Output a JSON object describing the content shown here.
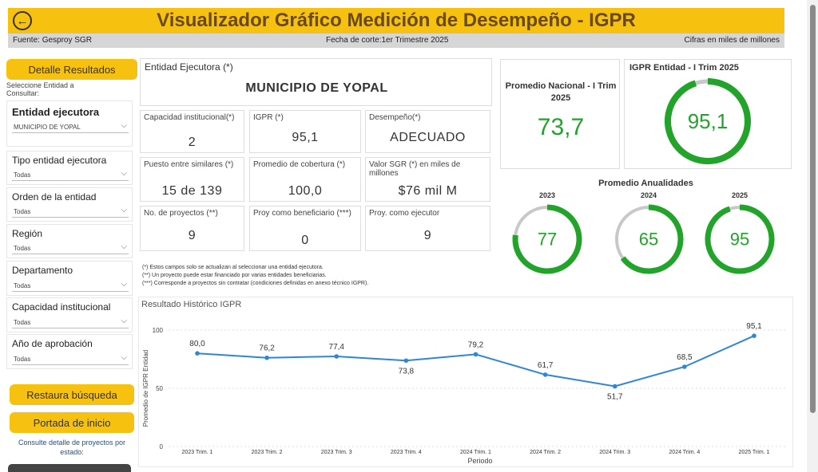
{
  "header": {
    "title": "Visualizador Gráfico Medición de Desempeño - IGPR",
    "back_icon": "←",
    "fuente": "Fuente: Gesproy SGR",
    "fecha_corte": "Fecha de corte:1er Trimestre 2025",
    "cifras": "Cifras en miles de millones"
  },
  "colors": {
    "accent": "#f7c10f",
    "green": "#22a32a",
    "gauge_bg": "#c8c8c8",
    "line": "#2f86d6"
  },
  "sidebar": {
    "detalle_button": "Detalle Resultados",
    "select_prompt": "Seleccione Entidad a Consultar:",
    "filters": [
      {
        "label": "Entidad ejecutora",
        "value": "MUNICIPIO DE YOPAL"
      },
      {
        "label": "Tipo entidad ejecutora",
        "value": "Todas"
      },
      {
        "label": "Orden de la entidad",
        "value": "Todas"
      },
      {
        "label": "Región",
        "value": "Todas"
      },
      {
        "label": "Departamento",
        "value": "Todas"
      },
      {
        "label": "Capacidad institucional",
        "value": "Todas"
      },
      {
        "label": "Año de aprobación",
        "value": "Todas"
      }
    ],
    "chevron": "⌵",
    "restaura_button": "Restaura búsqueda",
    "portada_button": "Portada de inicio",
    "consulte_link": "Consulte detalle de proyectos por estado:"
  },
  "entity": {
    "label": "Entidad Ejecutora (*)",
    "name": "MUNICIPIO DE YOPAL"
  },
  "kpis": [
    {
      "label": "Capacidad institucional(*)",
      "value": "2"
    },
    {
      "label": "IGPR (*)",
      "value": "95,1"
    },
    {
      "label": "Desempeño(*)",
      "value": "ADECUADO"
    },
    {
      "label": "Puesto entre similares (*)",
      "value": "15 de 139"
    },
    {
      "label": "Promedio de cobertura (*)",
      "value": "100,0"
    },
    {
      "label": "Valor SGR (*) en miles de millones",
      "value": "$76 mil M"
    },
    {
      "label": "No. de proyectos (**)",
      "value": "9"
    },
    {
      "label": "Proy como beneficiario (***)",
      "value": "0"
    },
    {
      "label": "Proy. como ejecutor",
      "value": "9"
    }
  ],
  "notes": [
    "(*) Estos campos solo se actualizan al seleccionar una entidad ejecutora.",
    "(**) Un proyecto puede estar financiado por varias entidades beneficiarias.",
    "(***) Corresponde a proyectos sin contratar (condiciones definidas en anexo técnico IGPR)."
  ],
  "promedio_nacional": {
    "label": "Promedio Nacional - I Trim 2025",
    "value": "73,7"
  },
  "igpr_entidad": {
    "label": "IGPR Entidad - I Trim 2025",
    "value": "95,1",
    "fraction": 0.951
  },
  "anualidades": {
    "label": "Promedio Anualidades",
    "items": [
      {
        "year": "2023",
        "value": "77",
        "fraction": 0.77
      },
      {
        "year": "2024",
        "value": "65",
        "fraction": 0.65
      },
      {
        "year": "2025",
        "value": "95",
        "fraction": 0.95
      }
    ]
  },
  "chart_data": {
    "type": "line",
    "title": "Resultado Histórico IGPR",
    "xlabel": "Periodo",
    "ylabel": "Promedio de IGPR Entidad",
    "ylim": [
      0,
      100
    ],
    "yticks": [
      0,
      50,
      100
    ],
    "categories": [
      "2023 Trim. 1",
      "2023 Trim. 2",
      "2023 Trim. 3",
      "2023 Trim. 4",
      "2024 Trim. 1",
      "2024 Trim. 2",
      "2024 Trim. 3",
      "2024 Trim. 4",
      "2025 Trim. 1"
    ],
    "values": [
      80.0,
      76.2,
      77.4,
      73.8,
      79.2,
      61.7,
      51.7,
      68.5,
      95.1
    ],
    "labels": [
      "80,0",
      "76,2",
      "77,4",
      "73,8",
      "79,2",
      "61,7",
      "51,7",
      "68,5",
      "95,1"
    ],
    "grid": true
  }
}
